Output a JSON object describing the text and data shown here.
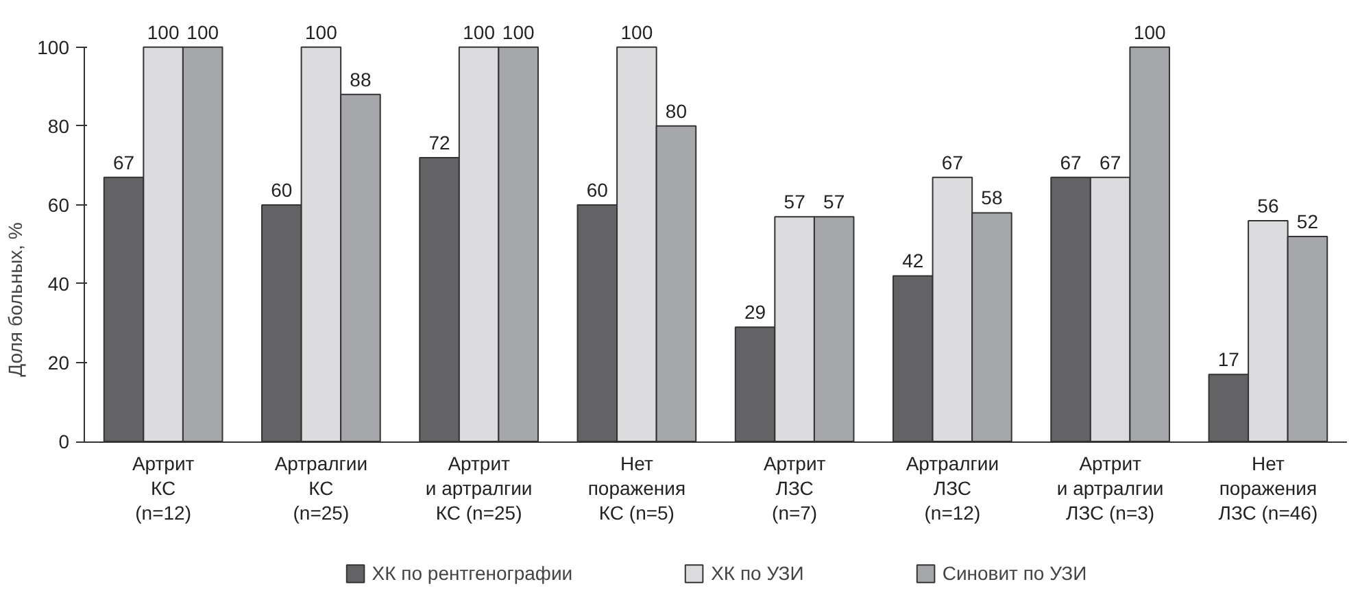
{
  "chart_data": {
    "type": "bar",
    "ylabel": "Доля больных, %",
    "categories": [
      "Артрит\nКС\n(n=12)",
      "Артралгии\nКС\n(n=25)",
      "Артрит\nи артралгии\nКС (n=25)",
      "Нет\nпоражения\nКС (n=5)",
      "Артрит\nЛЗС\n(n=7)",
      "Артралгии\nЛЗС\n(n=12)",
      "Артрит\nи артралгии\nЛЗС (n=3)",
      "Нет\nпоражения\nЛЗС (n=46)"
    ],
    "series": [
      {
        "name": "ХК по рентгенографии",
        "color": "#636365",
        "values": [
          67,
          60,
          72,
          60,
          29,
          42,
          67,
          17
        ]
      },
      {
        "name": "ХК по УЗИ",
        "color": "#dcdcde",
        "values": [
          100,
          100,
          100,
          100,
          57,
          67,
          67,
          56
        ]
      },
      {
        "name": "Синовит по УЗИ",
        "color": "#a6a7aa",
        "values": [
          100,
          88,
          100,
          80,
          57,
          58,
          100,
          52
        ]
      }
    ],
    "ylim": [
      0,
      100
    ],
    "yticks": [
      0,
      20,
      40,
      60,
      80,
      100
    ],
    "grid": false,
    "legend": "bottom",
    "data_labels": true
  }
}
